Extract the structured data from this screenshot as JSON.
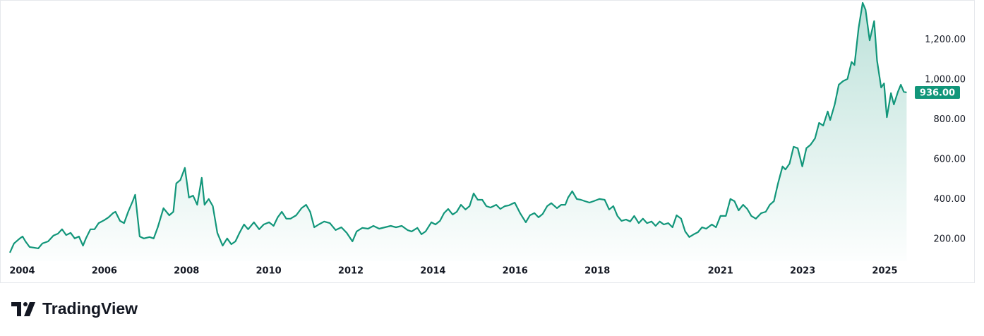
{
  "chart_data": {
    "type": "line",
    "x": [
      2003.7,
      2003.8,
      2003.94,
      2004.01,
      2004.08,
      2004.18,
      2004.28,
      2004.39,
      2004.49,
      2004.63,
      2004.76,
      2004.87,
      2004.97,
      2005.07,
      2005.18,
      2005.28,
      2005.38,
      2005.48,
      2005.55,
      2005.66,
      2005.76,
      2005.86,
      2006.0,
      2006.1,
      2006.21,
      2006.27,
      2006.38,
      2006.48,
      2006.58,
      2006.69,
      2006.75,
      2006.86,
      2006.96,
      2007.1,
      2007.2,
      2007.3,
      2007.44,
      2007.58,
      2007.68,
      2007.75,
      2007.85,
      2007.96,
      2008.06,
      2008.16,
      2008.26,
      2008.37,
      2008.44,
      2008.54,
      2008.64,
      2008.75,
      2008.88,
      2008.99,
      2009.09,
      2009.19,
      2009.29,
      2009.4,
      2009.5,
      2009.64,
      2009.77,
      2009.88,
      2010.01,
      2010.12,
      2010.22,
      2010.32,
      2010.43,
      2010.53,
      2010.67,
      2010.8,
      2010.91,
      2011.01,
      2011.11,
      2011.22,
      2011.35,
      2011.49,
      2011.63,
      2011.77,
      2011.9,
      2012.04,
      2012.14,
      2012.28,
      2012.42,
      2012.55,
      2012.69,
      2012.83,
      2012.97,
      2013.1,
      2013.24,
      2013.38,
      2013.48,
      2013.62,
      2013.72,
      2013.82,
      2013.96,
      2014.06,
      2014.17,
      2014.27,
      2014.37,
      2014.48,
      2014.58,
      2014.68,
      2014.79,
      2014.89,
      2014.99,
      2015.09,
      2015.2,
      2015.3,
      2015.4,
      2015.54,
      2015.64,
      2015.75,
      2015.85,
      2015.99,
      2016.12,
      2016.26,
      2016.36,
      2016.47,
      2016.57,
      2016.67,
      2016.78,
      2016.88,
      2017.02,
      2017.12,
      2017.22,
      2017.29,
      2017.39,
      2017.5,
      2017.6,
      2017.7,
      2017.81,
      2017.91,
      2018.05,
      2018.18,
      2018.29,
      2018.39,
      2018.49,
      2018.59,
      2018.7,
      2018.8,
      2018.9,
      2019.01,
      2019.11,
      2019.21,
      2019.32,
      2019.42,
      2019.52,
      2019.62,
      2019.73,
      2019.83,
      2019.93,
      2020.04,
      2020.14,
      2020.24,
      2020.35,
      2020.45,
      2020.55,
      2020.65,
      2020.79,
      2020.89,
      2021.0,
      2021.13,
      2021.24,
      2021.34,
      2021.44,
      2021.55,
      2021.65,
      2021.75,
      2021.86,
      2021.99,
      2022.1,
      2022.2,
      2022.3,
      2022.4,
      2022.51,
      2022.58,
      2022.68,
      2022.78,
      2022.88,
      2022.99,
      2023.09,
      2023.19,
      2023.3,
      2023.4,
      2023.5,
      2023.61,
      2023.67,
      2023.78,
      2023.88,
      2023.98,
      2024.09,
      2024.19,
      2024.26,
      2024.36,
      2024.46,
      2024.53,
      2024.63,
      2024.74,
      2024.81,
      2024.91,
      2024.98,
      2025.05,
      2025.15,
      2025.22,
      2025.32,
      2025.39,
      2025.46,
      2025.53
    ],
    "series": [
      {
        "color": "#12967a",
        "values": [
          133,
          179,
          204,
          214,
          189,
          161,
          158,
          154,
          179,
          189,
          218,
          228,
          250,
          221,
          232,
          204,
          214,
          168,
          204,
          250,
          250,
          281,
          296,
          310,
          331,
          338,
          292,
          281,
          338,
          391,
          423,
          214,
          204,
          211,
          204,
          260,
          356,
          320,
          338,
          480,
          497,
          558,
          409,
          419,
          373,
          508,
          373,
          402,
          366,
          232,
          168,
          204,
          175,
          189,
          232,
          274,
          250,
          285,
          250,
          274,
          285,
          267,
          310,
          338,
          303,
          303,
          320,
          356,
          373,
          338,
          260,
          274,
          289,
          281,
          246,
          260,
          232,
          189,
          239,
          257,
          253,
          267,
          253,
          260,
          267,
          260,
          267,
          246,
          239,
          257,
          225,
          239,
          285,
          274,
          292,
          331,
          352,
          324,
          338,
          373,
          349,
          366,
          430,
          398,
          398,
          366,
          359,
          373,
          352,
          366,
          370,
          384,
          331,
          285,
          320,
          331,
          310,
          327,
          366,
          381,
          356,
          373,
          373,
          409,
          441,
          402,
          398,
          391,
          384,
          391,
          402,
          398,
          349,
          366,
          317,
          292,
          299,
          289,
          317,
          281,
          303,
          281,
          289,
          267,
          289,
          274,
          281,
          260,
          320,
          303,
          239,
          211,
          225,
          235,
          260,
          253,
          274,
          260,
          317,
          317,
          402,
          391,
          345,
          373,
          352,
          317,
          303,
          331,
          338,
          373,
          391,
          480,
          565,
          550,
          579,
          664,
          657,
          565,
          657,
          674,
          706,
          784,
          770,
          841,
          798,
          876,
          975,
          993,
          1004,
          1089,
          1074,
          1258,
          1386,
          1351,
          1198,
          1294,
          1096,
          961,
          982,
          812,
          933,
          876,
          940,
          975,
          940,
          936
        ]
      }
    ],
    "last_price_label": "936.00",
    "xlim": [
      2003.7,
      2025.73
    ],
    "xticks": [
      2004,
      2006,
      2008,
      2010,
      2012,
      2014,
      2016,
      2018,
      2021,
      2023,
      2025
    ],
    "ylim": [
      90,
      1400
    ],
    "yticks": [
      {
        "value": 200,
        "label": "200.00"
      },
      {
        "value": 400,
        "label": "400.00"
      },
      {
        "value": 600,
        "label": "600.00"
      },
      {
        "value": 800,
        "label": "800.00"
      },
      {
        "value": 1000,
        "label": "1,000.00"
      },
      {
        "value": 1200,
        "label": "1,200.00"
      }
    ]
  },
  "brand": "TradingView"
}
